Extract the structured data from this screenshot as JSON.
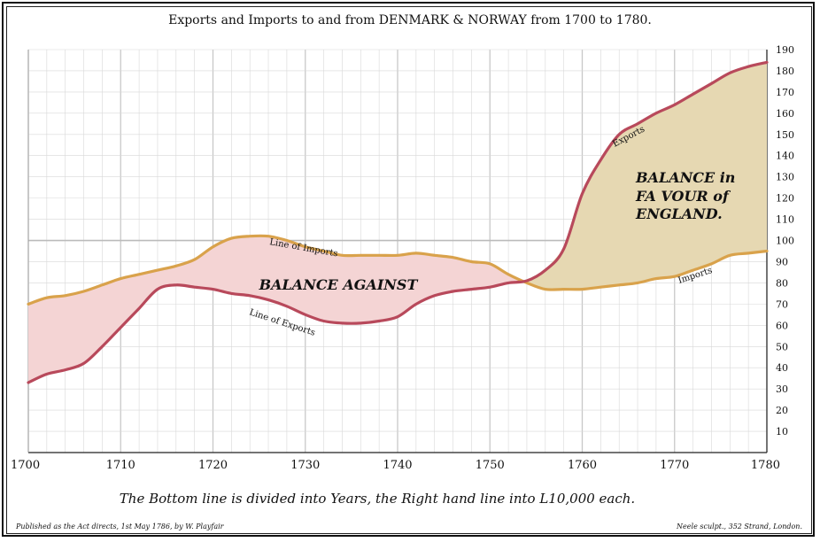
{
  "chart_data": {
    "type": "line",
    "title": "Exports and Imports to and from DENMARK & NORWAY from 1700 to 1780.",
    "xlabel": "The Bottom line is divided into Years, the Right hand line into L10,000 each.",
    "ylabel": "",
    "xlim": [
      1700,
      1780
    ],
    "ylim": [
      0,
      190
    ],
    "x_ticks": [
      1700,
      1710,
      1720,
      1730,
      1740,
      1750,
      1760,
      1770,
      1780
    ],
    "y_ticks": [
      10,
      20,
      30,
      40,
      50,
      60,
      70,
      80,
      90,
      100,
      110,
      120,
      130,
      140,
      150,
      160,
      170,
      180,
      190
    ],
    "grid": true,
    "series": [
      {
        "name": "Exports",
        "color": "#b8495b",
        "x": [
          1700,
          1702,
          1704,
          1706,
          1708,
          1710,
          1712,
          1714,
          1716,
          1718,
          1720,
          1722,
          1724,
          1726,
          1728,
          1730,
          1732,
          1734,
          1736,
          1738,
          1740,
          1742,
          1744,
          1746,
          1748,
          1750,
          1752,
          1754,
          1756,
          1758,
          1760,
          1762,
          1764,
          1766,
          1768,
          1770,
          1772,
          1774,
          1776,
          1778,
          1780
        ],
        "values": [
          33,
          37,
          39,
          42,
          50,
          59,
          68,
          77,
          79,
          78,
          77,
          75,
          74,
          72,
          69,
          65,
          62,
          61,
          61,
          62,
          64,
          70,
          74,
          76,
          77,
          78,
          80,
          81,
          86,
          96,
          122,
          138,
          150,
          155,
          160,
          164,
          169,
          174,
          179,
          182,
          184
        ]
      },
      {
        "name": "Imports",
        "color": "#d9a24b",
        "x": [
          1700,
          1702,
          1704,
          1706,
          1708,
          1710,
          1712,
          1714,
          1716,
          1718,
          1720,
          1722,
          1724,
          1726,
          1728,
          1730,
          1732,
          1734,
          1736,
          1738,
          1740,
          1742,
          1744,
          1746,
          1748,
          1750,
          1752,
          1754,
          1756,
          1758,
          1760,
          1762,
          1764,
          1766,
          1768,
          1770,
          1772,
          1774,
          1776,
          1778,
          1780
        ],
        "values": [
          70,
          73,
          74,
          76,
          79,
          82,
          84,
          86,
          88,
          91,
          97,
          101,
          102,
          102,
          100,
          97,
          95,
          93,
          93,
          93,
          93,
          94,
          93,
          92,
          90,
          89,
          84,
          80,
          77,
          77,
          77,
          78,
          79,
          80,
          82,
          83,
          86,
          89,
          93,
          94,
          95
        ]
      }
    ],
    "annotations": {
      "balance_against": "BALANCE AGAINST",
      "balance_favour_line1": "BALANCE in",
      "balance_favour_line2": "FA VOUR of",
      "balance_favour_line3": "ENGLAND.",
      "line_of_imports": "Line of Imports",
      "line_of_exports": "Line of Exports",
      "exports_label": "Exports",
      "imports_label": "Imports"
    },
    "colors": {
      "against_fill": "#f4d4d4",
      "favour_fill": "#e6d8b2",
      "grid": "#d8d8d8"
    }
  },
  "footer": {
    "left": "Published as the Act directs, 1st May 1786, by W. Playfair",
    "right": "Neele sculpt., 352 Strand, London."
  }
}
